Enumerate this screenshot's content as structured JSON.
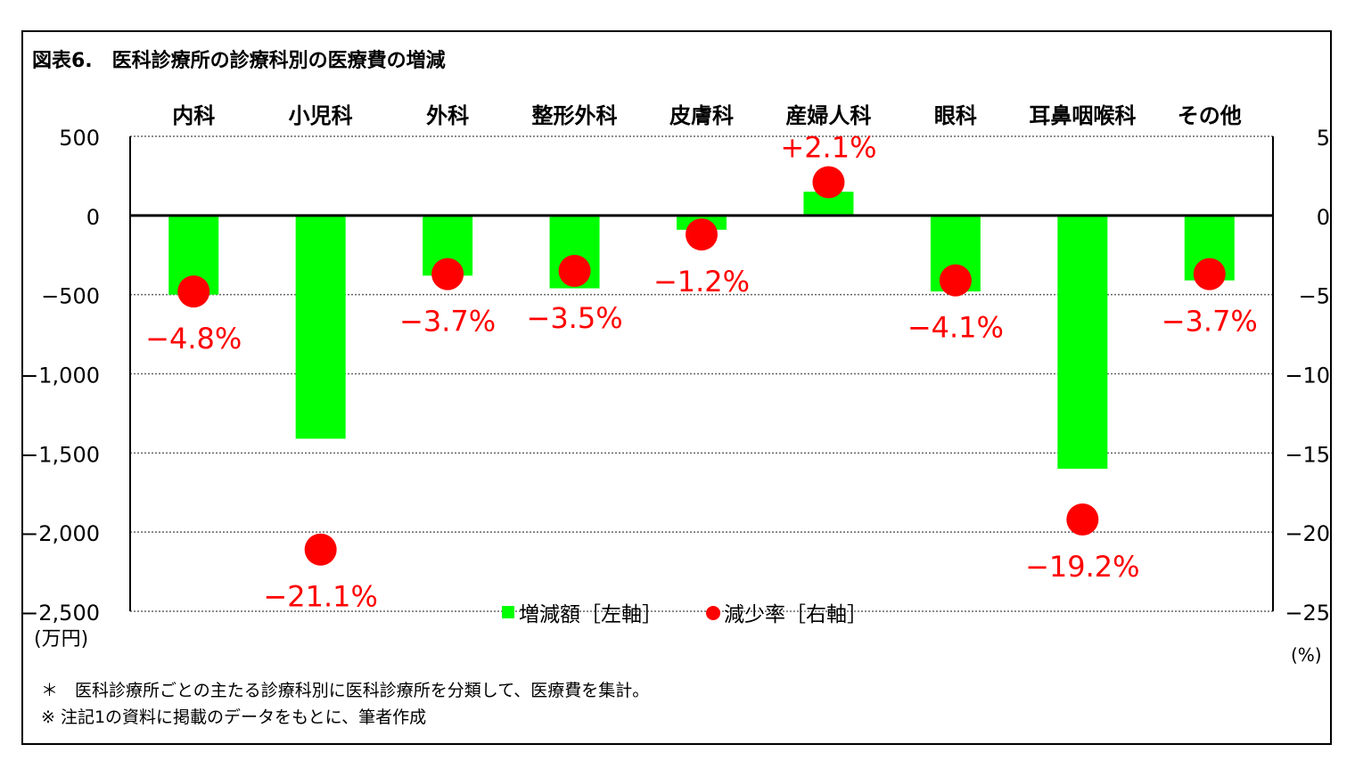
{
  "title": "図表6.　医科診療所の診療科別の医療費の増減",
  "notes": [
    "＊　医科診療所ごとの主たる診療科別に医科診療所を分類して、医療費を集計。",
    "※ 注記1の資料に掲載のデータをもとに、筆者作成"
  ],
  "colors": {
    "bar": "#00ff00",
    "dot": "#ff0000",
    "label": "#ff0000",
    "axis": "#000000"
  },
  "chart_data": {
    "type": "bar",
    "categories": [
      "内科",
      "小児科",
      "外科",
      "整形外科",
      "皮膚科",
      "産婦人科",
      "眼科",
      "耳鼻咽喉科",
      "その他"
    ],
    "series": [
      {
        "name": "増減額［左軸］",
        "type": "bar",
        "axis": "left",
        "values": [
          -500,
          -1410,
          -380,
          -460,
          -90,
          150,
          -480,
          -1600,
          -410
        ]
      },
      {
        "name": "減少率［右軸］",
        "type": "scatter",
        "axis": "right",
        "values": [
          -4.8,
          -21.1,
          -3.7,
          -3.5,
          -1.2,
          2.1,
          -4.1,
          -19.2,
          -3.7
        ],
        "labels": [
          "−4.8%",
          "−21.1%",
          "−3.7%",
          "−3.5%",
          "−1.2%",
          "+2.1%",
          "−4.1%",
          "−19.2%",
          "−3.7%"
        ]
      }
    ],
    "left_axis": {
      "unit": "(万円)",
      "ylim": [
        -2500,
        500
      ],
      "ticks": [
        500,
        0,
        -500,
        -1000,
        -1500,
        -2000,
        -2500
      ],
      "tick_labels": [
        "500",
        "0",
        "−500",
        "−1,000",
        "−1,500",
        "−2,000",
        "−2,500"
      ]
    },
    "right_axis": {
      "unit": "(%)",
      "ylim": [
        -25,
        5
      ],
      "ticks": [
        5,
        0,
        -5,
        -10,
        -15,
        -20,
        -25
      ],
      "tick_labels": [
        "5",
        "0",
        "−5",
        "−10",
        "−15",
        "−20",
        "−25"
      ]
    },
    "grid": true,
    "legend_position": "bottom-center"
  }
}
